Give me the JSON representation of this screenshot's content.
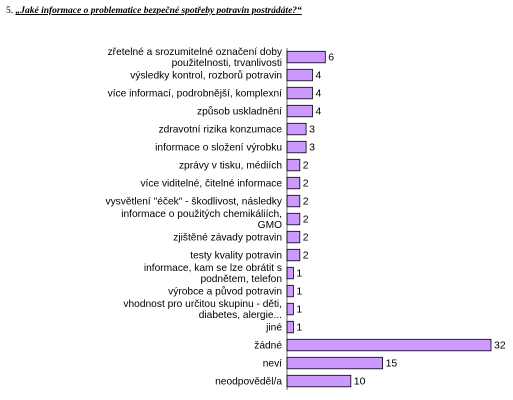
{
  "question": {
    "number": "5.",
    "text": "„Jaké informace o problematice bezpečné spotřeby potravin postrádáte?“"
  },
  "chart_data": {
    "type": "bar",
    "orientation": "horizontal",
    "bar_color": "#cc99ff",
    "grid": false,
    "categories": [
      [
        "zřetelné a srozumitelné označení doby",
        "použitelnosti, trvanlivosti"
      ],
      [
        "výsledky kontrol, rozborů potravin"
      ],
      [
        "více informací, podrobnější, komplexní"
      ],
      [
        "způsob uskladnění"
      ],
      [
        "zdravotní rizika konzumace"
      ],
      [
        "informace o složení výrobku"
      ],
      [
        "zprávy v tisku, médiích"
      ],
      [
        "více viditelné, čitelné informace"
      ],
      [
        "vysvětlení \"éček\" - škodlivost, následky"
      ],
      [
        "informace o použitých chemikáliích,",
        "GMO"
      ],
      [
        "zjištěné závady potravin"
      ],
      [
        "testy kvality potravin"
      ],
      [
        "informace, kam se lze obrátit s",
        "podnětem, telefon"
      ],
      [
        "výrobce a původ potravin"
      ],
      [
        "vhodnost pro určitou skupinu -  děti,",
        "diabetes, alergie..."
      ],
      [
        "jiné"
      ],
      [
        "žádné"
      ],
      [
        "neví"
      ],
      [
        "neodpověděl/a"
      ]
    ],
    "values": [
      6,
      4,
      4,
      4,
      3,
      3,
      2,
      2,
      2,
      2,
      2,
      2,
      1,
      1,
      1,
      1,
      32,
      15,
      10
    ],
    "xlim": [
      0,
      32
    ]
  }
}
